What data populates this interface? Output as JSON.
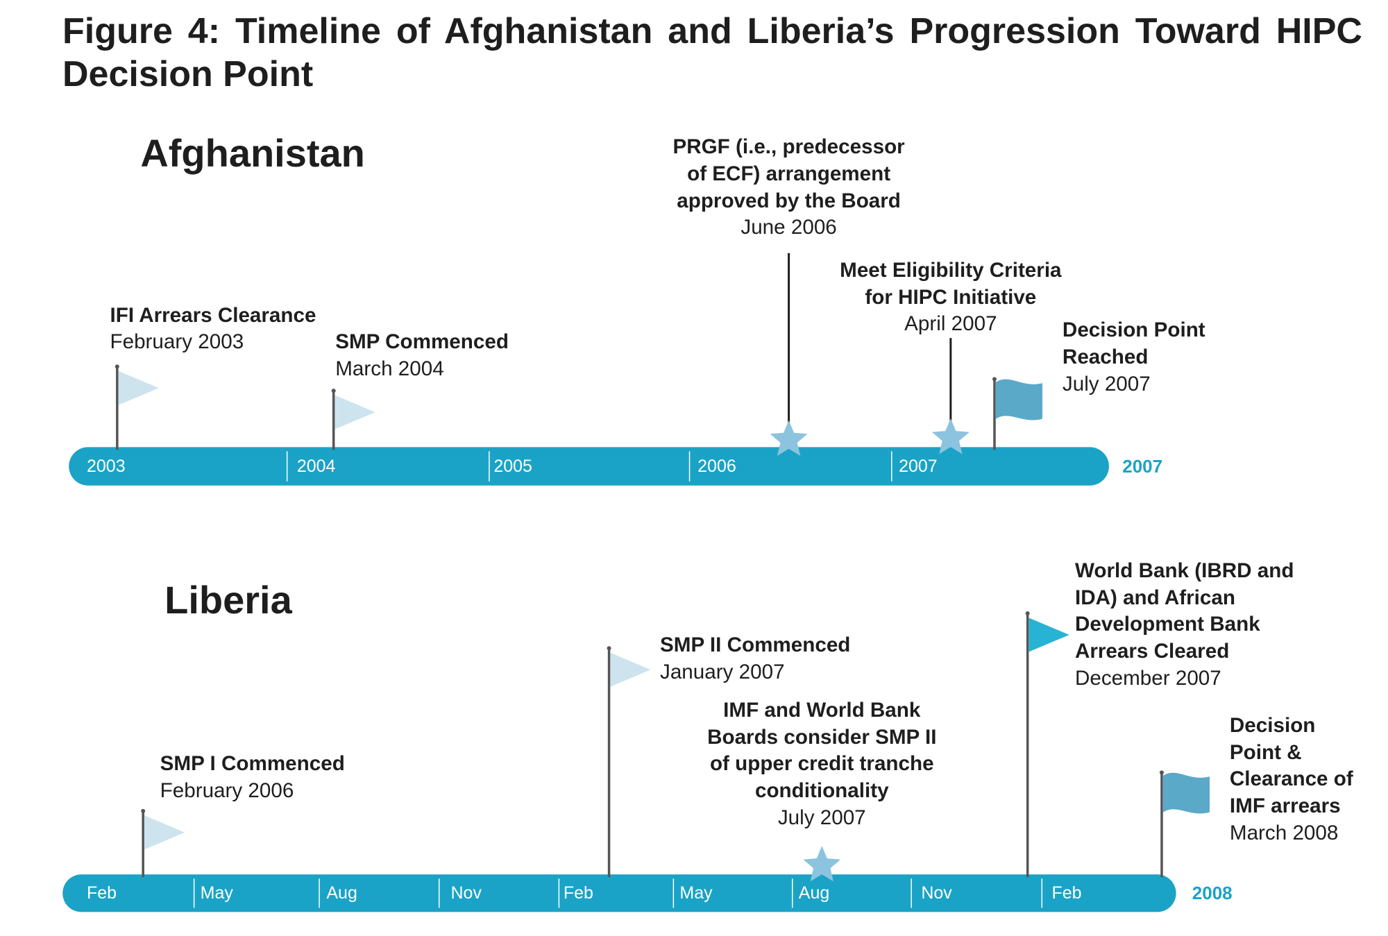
{
  "title": "Figure 4: Timeline of Afghanistan and Liberia’s Progression Toward HIPC Decision Point",
  "timelines": [
    {
      "country": "Afghanistan",
      "axis_labels": [
        "2003",
        "2004",
        "2005",
        "2006",
        "2007"
      ],
      "end_label": "2007",
      "events": [
        {
          "title": [
            "IFI Arrears Clearance"
          ],
          "date": "February 2003"
        },
        {
          "title": [
            "SMP Commenced"
          ],
          "date": "March 2004"
        },
        {
          "title": [
            "PRGF (i.e., predecessor",
            "of ECF) arrangement",
            "approved by the Board"
          ],
          "date": "June 2006"
        },
        {
          "title": [
            "Meet Eligibility Criteria",
            "for HIPC Initiative"
          ],
          "date": "April 2007"
        },
        {
          "title": [
            "Decision Point",
            "Reached"
          ],
          "date": "July 2007"
        }
      ]
    },
    {
      "country": "Liberia",
      "axis_labels": [
        "Feb",
        "May",
        "Aug",
        "Nov",
        "Feb",
        "May",
        "Aug",
        "Nov",
        "Feb"
      ],
      "end_label": "2008",
      "events": [
        {
          "title": [
            "SMP I Commenced"
          ],
          "date": "February 2006"
        },
        {
          "title": [
            "SMP II Commenced"
          ],
          "date": "January 2007"
        },
        {
          "title": [
            "IMF and World Bank",
            "Boards consider SMP II",
            "of upper credit tranche",
            "conditionality"
          ],
          "date": "July 2007"
        },
        {
          "title": [
            "World Bank (IBRD and",
            "IDA) and African",
            "Development Bank",
            "Arrears Cleared"
          ],
          "date": "December 2007"
        },
        {
          "title": [
            "Decision",
            "Point &",
            "Clearance of",
            "IMF arrears"
          ],
          "date": "March 2008"
        }
      ]
    }
  ]
}
